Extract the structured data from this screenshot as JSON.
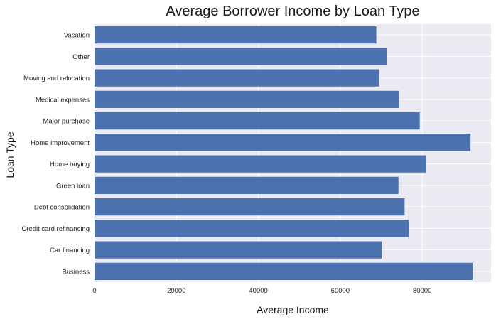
{
  "colors": {
    "bar": "#4c72b0",
    "plot_background": "#eaeaf2",
    "grid": "#ffffff",
    "figure_background": "#ffffff"
  },
  "chart_data": {
    "type": "bar",
    "orientation": "horizontal",
    "title": "Average Borrower Income by Loan Type",
    "xlabel": "Average Income",
    "ylabel": "Loan Type",
    "categories": [
      "Business",
      "Car financing",
      "Credit card refinancing",
      "Debt consolidation",
      "Green loan",
      "Home buying",
      "Home improvement",
      "Major purchase",
      "Medical expenses",
      "Moving and relocation",
      "Other",
      "Vacation"
    ],
    "values": [
      92300,
      70100,
      76700,
      75700,
      74200,
      81000,
      91800,
      79400,
      74300,
      69500,
      71300,
      68800
    ],
    "xlim": [
      0,
      96800
    ],
    "xticks": [
      0,
      20000,
      40000,
      60000,
      80000
    ],
    "xtick_labels": [
      "0",
      "20000",
      "40000",
      "60000",
      "80000"
    ],
    "grid": true,
    "legend": "none"
  }
}
